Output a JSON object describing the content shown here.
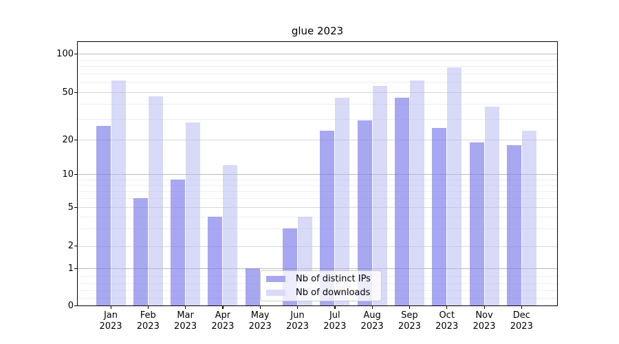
{
  "title": "glue 2023",
  "legend": {
    "items": [
      {
        "label": "Nb of distinct IPs",
        "color": "#a7a7f0"
      },
      {
        "label": "Nb of downloads",
        "color": "#d9d9f8"
      }
    ]
  },
  "chart_data": {
    "type": "bar",
    "title": "glue 2023",
    "categories": [
      "Jan 2023",
      "Feb 2023",
      "Mar 2023",
      "Apr 2023",
      "May 2023",
      "Jun 2023",
      "Jul 2023",
      "Aug 2023",
      "Sep 2023",
      "Oct 2023",
      "Nov 2023",
      "Dec 2023"
    ],
    "series": [
      {
        "name": "Nb of distinct IPs",
        "color": "#a7a7f0",
        "values": [
          26,
          6,
          9,
          4,
          1,
          3,
          24,
          29,
          45,
          25,
          19,
          18
        ]
      },
      {
        "name": "Nb of downloads",
        "color": "#d9d9f8",
        "values": [
          62,
          46,
          28,
          12,
          0,
          4,
          45,
          56,
          62,
          78,
          38,
          24
        ]
      }
    ],
    "xlabel": "",
    "ylabel": "",
    "yscale": "symlog",
    "y_ticks": [
      0,
      1,
      2,
      5,
      10,
      20,
      50,
      100
    ],
    "y_minor_ticks": [
      0.2,
      0.4,
      0.6,
      0.8,
      3,
      4,
      6,
      7,
      8,
      9,
      30,
      40,
      60,
      70,
      80,
      90
    ],
    "ylim": [
      0,
      125
    ],
    "grid": "horizontal",
    "legend_position": "lower center"
  }
}
